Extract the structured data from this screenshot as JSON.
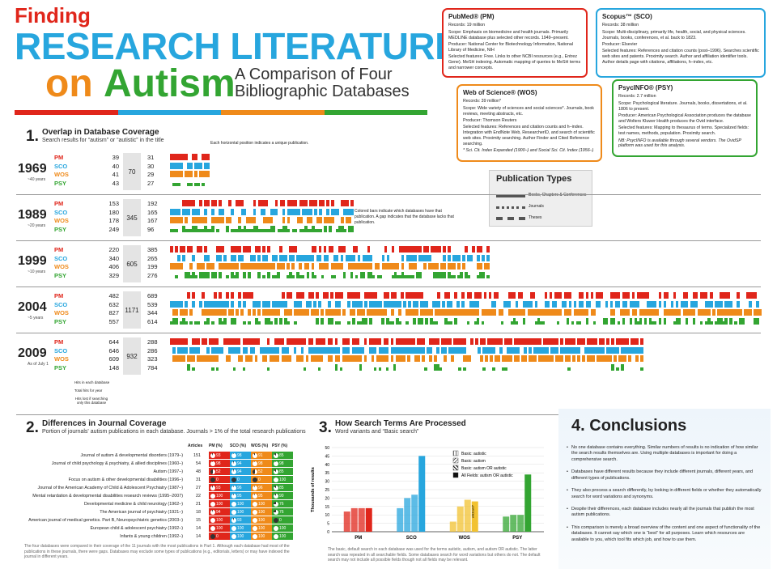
{
  "title": {
    "line1": "Finding",
    "line2": "RESEARCH LITERATURE",
    "line3a": "on",
    "line3b": "Autism",
    "subtitle": "A Comparison of Four Bibliographic Databases"
  },
  "colors": {
    "pm": "#e0261b",
    "sco": "#27a6de",
    "wos": "#ef8a1a",
    "psy": "#33a532"
  },
  "databases": [
    {
      "key": "pm",
      "name": "PubMed® (PM)",
      "records": "Records: 19 million",
      "scope": "Scope: Emphasis on biomedicine and health journals. Primarily MEDLINE database plus selected other records. 1949–present.",
      "producer": "Producer: National Center for Biotechnology Information, National Library of Medicine, NIH",
      "features": "Selected features: Free. Links to other NCBI resources (e.g., Entrez Gene). MeSH indexing. Automatic mapping of queries to MeSH terms and narrower concepts.",
      "note": ""
    },
    {
      "key": "sco",
      "name": "Scopus™ (SCO)",
      "records": "Records: 38 million",
      "scope": "Scope: Multi-disciplinary, primarily life, health, social, and physical sciences. Journals, books, conferences, et al. back to 1823.",
      "producer": "Producer: Elsevier",
      "features": "Selected features: References and citation counts (post–1996). Searches scientific web sites and patents. Proximity search. Author and affiliation identifier tools. Author details page with citations, affiliations, h–index, etc.",
      "note": ""
    },
    {
      "key": "wos",
      "name": "Web of Science® (WOS)",
      "records": "Records: 39 million*",
      "scope": "Scope: Wide variety of sciences and social sciences*. Journals, book reviews, meeting abstracts, etc.",
      "producer": "Producer: Thomson Reuters",
      "features": "Selected features: References and citation counts and h–index. Integration with EndNote Web, ResearcherID, and search of scientific web sites. Proximity searching. Author Finder and Cited Reference searching.",
      "note": "* Sci. Cit. Index Expanded (1900–) and Social Sci. Cit. Index (1956–)"
    },
    {
      "key": "psy",
      "name": "PsycINFO® (PSY)",
      "records": "Records: 2.7 million",
      "scope": "Scope: Psychological literature. Journals, books, dissertations, et al. 1806 to present.",
      "producer": "Producer: American Psychological Association produces the database and Wolters Kluwer Health produces the Ovid interface.",
      "features": "Selected features: Mapping to thesaurus of terms. Specialized fields: test names, methods, population. Proximity search.",
      "note": "NB: PsycINFO is available through several vendors. The OvidSP platform was used for this analysis."
    }
  ],
  "pubtypes": {
    "title": "Publication Types",
    "items": [
      "Books, Chapters & Conferences",
      "Journals",
      "Theses"
    ]
  },
  "sec1": {
    "num": "1.",
    "title": "Overlap in Database Coverage",
    "sub": "Search results for “autism” or “autistic” in the title",
    "note1": "Each horizontal position indicates a unique publication.",
    "note2": "Colored bars indicate which databases have that publication. A gap indicates that the database lacks that publication.",
    "ann1": "Hits in each database",
    "ann2": "Total hits for year",
    "ann3": "Hits lost if searching only this database",
    "labels": [
      "PM",
      "SCO",
      "WOS",
      "PSY"
    ],
    "rows": [
      {
        "year": "1969",
        "span": "~40 years",
        "hits": [
          "39",
          "40",
          "41",
          "43"
        ],
        "total": "70",
        "lost": [
          "31",
          "30",
          "29",
          "27"
        ],
        "extent": 0.07
      },
      {
        "year": "1989",
        "span": "~20 years",
        "hits": [
          "153",
          "180",
          "178",
          "249"
        ],
        "total": "345",
        "lost": [
          "192",
          "165",
          "167",
          "96"
        ],
        "extent": 0.31
      },
      {
        "year": "1999",
        "span": "~10 years",
        "hits": [
          "220",
          "340",
          "406",
          "329"
        ],
        "total": "605",
        "lost": [
          "385",
          "265",
          "199",
          "276"
        ],
        "extent": 0.54
      },
      {
        "year": "2004",
        "span": "~5 years",
        "hits": [
          "482",
          "632",
          "827",
          "557"
        ],
        "total": "1171",
        "lost": [
          "689",
          "539",
          "344",
          "614"
        ],
        "extent": 1.0
      },
      {
        "year": "2009",
        "span": "As of July 1",
        "hits": [
          "644",
          "646",
          "609",
          "148"
        ],
        "total": "932",
        "lost": [
          "288",
          "286",
          "323",
          "784"
        ],
        "extent": 0.8
      }
    ]
  },
  "sec2": {
    "num": "2.",
    "title": "Differences in Journal Coverage",
    "sub": "Portion of journals' autism publications in each database. Journals > 1% of the total research publications",
    "headers": [
      "Articles",
      "PM (%)",
      "SCO (%)",
      "WOS (%)",
      "PSY (%)"
    ],
    "rows": [
      {
        "j": "Journal of autism & developmental disorders (1979–)",
        "a": "151",
        "v": [
          "93",
          "98",
          "91",
          "85"
        ]
      },
      {
        "j": "Journal of child psychology & psychiatry, & allied disciplines (1960–)",
        "a": "54",
        "v": [
          "98",
          "94",
          "98",
          "98"
        ]
      },
      {
        "j": "Autism (1997–)",
        "a": "48",
        "v": [
          "52",
          "94",
          "52",
          "85"
        ]
      },
      {
        "j": "Focus on autism & other developmental disabilities (1996–)",
        "a": "31",
        "v": [
          "0",
          "0",
          "0",
          "100"
        ]
      },
      {
        "j": "Journal of the American Academy of Child & Adolescent Psychiatry (1987–)",
        "a": "27",
        "v": [
          "93",
          "96",
          "96",
          "85"
        ]
      },
      {
        "j": "Mental retardation & developmental disabilities research reviews (1995–2007)",
        "a": "22",
        "v": [
          "100",
          "95",
          "95",
          "90"
        ]
      },
      {
        "j": "Developmental medicine & child neurology (1962–)",
        "a": "21",
        "v": [
          "100",
          "100",
          "100",
          "76"
        ]
      },
      {
        "j": "The American journal of psychiatry (1921–)",
        "a": "18",
        "v": [
          "94",
          "100",
          "100",
          "76"
        ]
      },
      {
        "j": "American journal of medical genetics. Part B, Neuropsychiatric genetics (2003–)",
        "a": "15",
        "v": [
          "100",
          "93",
          "100",
          "0"
        ]
      },
      {
        "j": "European child & adolescent psychiatry (1992–)",
        "a": "14",
        "v": [
          "100",
          "100",
          "100",
          "100"
        ]
      },
      {
        "j": "Infants & young children (1992–)",
        "a": "14",
        "v": [
          "0",
          "100",
          "100",
          "100"
        ]
      }
    ],
    "note": "The four databases were compared in their coverage of the 11 journals with the most publications in Part 1. Although each database had most of the publications in these journals, there were gaps. Databases may exclude some types of publications (e.g., editorials, letters) or may have indexed the journal in different years."
  },
  "sec3": {
    "num": "3.",
    "title": "How Search Terms Are Processed",
    "sub": "Word variants and “Basic search”",
    "ylabel": "Thousands of results",
    "legend": [
      "Basic: autistic",
      "Basic: autism",
      "Basic: autism OR autistic",
      "All Fields: autism OR autistic"
    ],
    "note": "The basic, default search in each database was used for the terms autistic, autism, and autism OR autistic. The latter search was repeated in all searchable fields. Some databases search for word variations but others do not. The default search may not include all possible fields though not all fields may be relevant.",
    "annot": "wildcard*",
    "chart_data": {
      "type": "bar",
      "categories": [
        "PM",
        "SCO",
        "WOS",
        "PSY"
      ],
      "ylabel": "Thousands of results",
      "ylim": [
        0,
        50
      ],
      "yticks": [
        0,
        5,
        10,
        15,
        20,
        25,
        30,
        35,
        40,
        45,
        50
      ],
      "series": [
        {
          "name": "Basic: autistic",
          "values": [
            12,
            14,
            6,
            9
          ]
        },
        {
          "name": "Basic: autism",
          "values": [
            14,
            20,
            15,
            10
          ]
        },
        {
          "name": "Basic: autism OR autistic",
          "values": [
            14,
            22,
            19,
            10
          ]
        },
        {
          "name": "All Fields: autism OR autistic",
          "values": [
            14,
            45,
            18,
            34
          ]
        }
      ]
    }
  },
  "sec4": {
    "num": "4.",
    "title": "Conclusions",
    "items": [
      "No one database contains everything. Similar numbers of results is no indication of how similar the search results themselves are. Using multiple databases is important for doing a comprehensive search.",
      "Databases have different results because they include different journals, different years, and different types of publications.",
      "They also process a search differently, by looking in different fields or whether they automatically search for word variations and synonyms.",
      "Despite their differences, each database includes nearly all the journals that publish the most autism publications.",
      "This comparison is merely a broad overview of the content and one aspect of functionality of the databases. It cannot say which one is “best” for all purposes. Learn which resources are available to you, which tool fits which job, and how to use them."
    ]
  }
}
